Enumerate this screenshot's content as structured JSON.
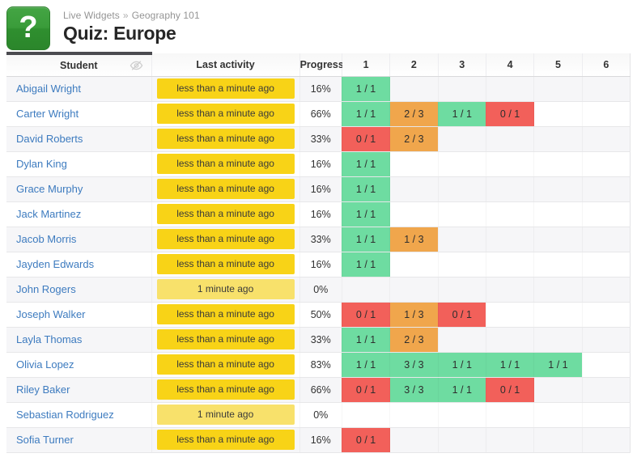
{
  "header": {
    "icon": "question-mark-icon",
    "breadcrumb": {
      "items": [
        "Live Widgets",
        "Geography 101"
      ],
      "separator": "»"
    },
    "title": "Quiz: Europe"
  },
  "table": {
    "columns": {
      "student": "Student",
      "last_activity": "Last activity",
      "progress": "Progress",
      "questions": [
        "1",
        "2",
        "3",
        "4",
        "5",
        "6"
      ]
    },
    "student_header_icon": "eye-slash-icon"
  },
  "colors": {
    "correct": "#6edca1",
    "partial": "#f0a64c",
    "incorrect": "#f2605a",
    "badge_recent": "#f8d317",
    "badge_older": "#f8e16b",
    "link": "#3d7bbf",
    "tab_bar": "#4a4a4f",
    "icon_green_top": "#44a544",
    "icon_green_bottom": "#2b862b"
  },
  "rows": [
    {
      "name": "Abigail Wright",
      "last_activity": "less than a minute ago",
      "recency": "under-minute",
      "progress": "16%",
      "scores": [
        {
          "text": "1 / 1",
          "grade": "correct"
        },
        null,
        null,
        null,
        null,
        null
      ]
    },
    {
      "name": "Carter Wright",
      "last_activity": "less than a minute ago",
      "recency": "under-minute",
      "progress": "66%",
      "scores": [
        {
          "text": "1 / 1",
          "grade": "correct"
        },
        {
          "text": "2 / 3",
          "grade": "partial"
        },
        {
          "text": "1 / 1",
          "grade": "correct"
        },
        {
          "text": "0 / 1",
          "grade": "incorrect"
        },
        null,
        null
      ]
    },
    {
      "name": "David Roberts",
      "last_activity": "less than a minute ago",
      "recency": "under-minute",
      "progress": "33%",
      "scores": [
        {
          "text": "0 / 1",
          "grade": "incorrect"
        },
        {
          "text": "2 / 3",
          "grade": "partial"
        },
        null,
        null,
        null,
        null
      ]
    },
    {
      "name": "Dylan King",
      "last_activity": "less than a minute ago",
      "recency": "under-minute",
      "progress": "16%",
      "scores": [
        {
          "text": "1 / 1",
          "grade": "correct"
        },
        null,
        null,
        null,
        null,
        null
      ]
    },
    {
      "name": "Grace Murphy",
      "last_activity": "less than a minute ago",
      "recency": "under-minute",
      "progress": "16%",
      "scores": [
        {
          "text": "1 / 1",
          "grade": "correct"
        },
        null,
        null,
        null,
        null,
        null
      ]
    },
    {
      "name": "Jack Martinez",
      "last_activity": "less than a minute ago",
      "recency": "under-minute",
      "progress": "16%",
      "scores": [
        {
          "text": "1 / 1",
          "grade": "correct"
        },
        null,
        null,
        null,
        null,
        null
      ]
    },
    {
      "name": "Jacob Morris",
      "last_activity": "less than a minute ago",
      "recency": "under-minute",
      "progress": "33%",
      "scores": [
        {
          "text": "1 / 1",
          "grade": "correct"
        },
        {
          "text": "1 / 3",
          "grade": "partial"
        },
        null,
        null,
        null,
        null
      ]
    },
    {
      "name": "Jayden Edwards",
      "last_activity": "less than a minute ago",
      "recency": "under-minute",
      "progress": "16%",
      "scores": [
        {
          "text": "1 / 1",
          "grade": "correct"
        },
        null,
        null,
        null,
        null,
        null
      ]
    },
    {
      "name": "John Rogers",
      "last_activity": "1 minute ago",
      "recency": "minute",
      "progress": "0%",
      "scores": [
        null,
        null,
        null,
        null,
        null,
        null
      ]
    },
    {
      "name": "Joseph Walker",
      "last_activity": "less than a minute ago",
      "recency": "under-minute",
      "progress": "50%",
      "scores": [
        {
          "text": "0 / 1",
          "grade": "incorrect"
        },
        {
          "text": "1 / 3",
          "grade": "partial"
        },
        {
          "text": "0 / 1",
          "grade": "incorrect"
        },
        null,
        null,
        null
      ]
    },
    {
      "name": "Layla Thomas",
      "last_activity": "less than a minute ago",
      "recency": "under-minute",
      "progress": "33%",
      "scores": [
        {
          "text": "1 / 1",
          "grade": "correct"
        },
        {
          "text": "2 / 3",
          "grade": "partial"
        },
        null,
        null,
        null,
        null
      ]
    },
    {
      "name": "Olivia Lopez",
      "last_activity": "less than a minute ago",
      "recency": "under-minute",
      "progress": "83%",
      "scores": [
        {
          "text": "1 / 1",
          "grade": "correct"
        },
        {
          "text": "3 / 3",
          "grade": "correct"
        },
        {
          "text": "1 / 1",
          "grade": "correct"
        },
        {
          "text": "1 / 1",
          "grade": "correct"
        },
        {
          "text": "1 / 1",
          "grade": "correct"
        },
        null
      ]
    },
    {
      "name": "Riley Baker",
      "last_activity": "less than a minute ago",
      "recency": "under-minute",
      "progress": "66%",
      "scores": [
        {
          "text": "0 / 1",
          "grade": "incorrect"
        },
        {
          "text": "3 / 3",
          "grade": "correct"
        },
        {
          "text": "1 / 1",
          "grade": "correct"
        },
        {
          "text": "0 / 1",
          "grade": "incorrect"
        },
        null,
        null
      ]
    },
    {
      "name": "Sebastian Rodriguez",
      "last_activity": "1 minute ago",
      "recency": "minute",
      "progress": "0%",
      "scores": [
        null,
        null,
        null,
        null,
        null,
        null
      ]
    },
    {
      "name": "Sofia Turner",
      "last_activity": "less than a minute ago",
      "recency": "under-minute",
      "progress": "16%",
      "scores": [
        {
          "text": "0 / 1",
          "grade": "incorrect"
        },
        null,
        null,
        null,
        null,
        null
      ]
    }
  ]
}
